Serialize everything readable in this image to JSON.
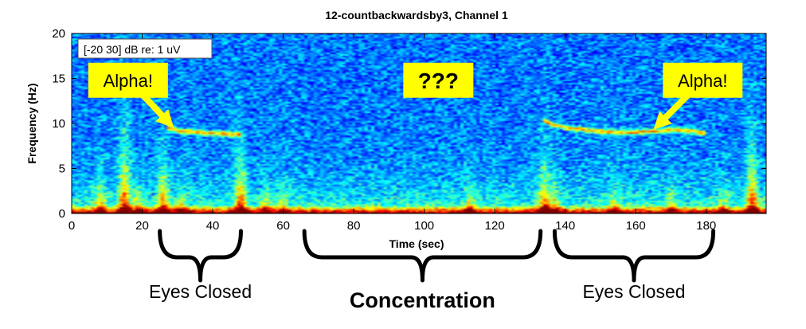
{
  "chart_data": {
    "type": "heatmap",
    "title": "12-countbackwardsby3, Channel 1",
    "xlabel": "Time (sec)",
    "ylabel": "Frequency (Hz)",
    "xlim": [
      0,
      197
    ],
    "ylim": [
      0,
      20
    ],
    "xticks": [
      0,
      20,
      40,
      60,
      80,
      100,
      120,
      140,
      160,
      180
    ],
    "yticks": [
      0,
      5,
      10,
      15,
      20
    ],
    "colorbar_note": "[-20 30] dB re: 1 uV",
    "colormap": "jet",
    "alpha_bands": [
      {
        "x": [
          27,
          30,
          33,
          36,
          39,
          42,
          45,
          48
        ],
        "y": [
          9.6,
          9.2,
          9.1,
          9.0,
          8.9,
          8.9,
          8.8,
          8.8
        ]
      },
      {
        "x": [
          134,
          137,
          141,
          145,
          150,
          155,
          160,
          165,
          170,
          175,
          180
        ],
        "y": [
          10.3,
          9.8,
          9.5,
          9.3,
          9.1,
          9.0,
          9.0,
          9.1,
          9.3,
          9.2,
          8.9
        ]
      }
    ],
    "low_freq_bursts": [
      {
        "x": 8,
        "strength": 0.7,
        "height": 3
      },
      {
        "x": 15,
        "strength": 1.0,
        "height": 6
      },
      {
        "x": 19,
        "strength": 0.6,
        "height": 2
      },
      {
        "x": 26,
        "strength": 0.9,
        "height": 4
      },
      {
        "x": 31,
        "strength": 0.6,
        "height": 2
      },
      {
        "x": 48,
        "strength": 0.95,
        "height": 4.5
      },
      {
        "x": 55,
        "strength": 0.6,
        "height": 2
      },
      {
        "x": 60,
        "strength": 0.5,
        "height": 2
      },
      {
        "x": 113,
        "strength": 0.6,
        "height": 2
      },
      {
        "x": 134,
        "strength": 0.9,
        "height": 4
      },
      {
        "x": 137,
        "strength": 0.6,
        "height": 2.5
      },
      {
        "x": 154,
        "strength": 0.5,
        "height": 2
      },
      {
        "x": 170,
        "strength": 0.6,
        "height": 2
      },
      {
        "x": 185,
        "strength": 0.5,
        "height": 2
      },
      {
        "x": 193,
        "strength": 1.0,
        "height": 5
      }
    ],
    "annotations": [
      {
        "text": "Alpha!",
        "box_center": [
          16,
          14.8
        ],
        "arrow_to": [
          29,
          9.5
        ]
      },
      {
        "text": "???",
        "box_center": [
          104,
          14.8
        ]
      },
      {
        "text": "Alpha!",
        "box_center": [
          179,
          14.8
        ],
        "arrow_to": [
          165,
          9.3
        ]
      }
    ],
    "highlight_color": "#ffff00"
  },
  "segments": [
    {
      "label": "Eyes Closed",
      "from": 25,
      "to": 48,
      "bold": false
    },
    {
      "label": "Concentration",
      "from": 66,
      "to": 133,
      "bold": true
    },
    {
      "label": "Eyes Closed",
      "from": 137,
      "to": 182,
      "bold": false
    }
  ]
}
